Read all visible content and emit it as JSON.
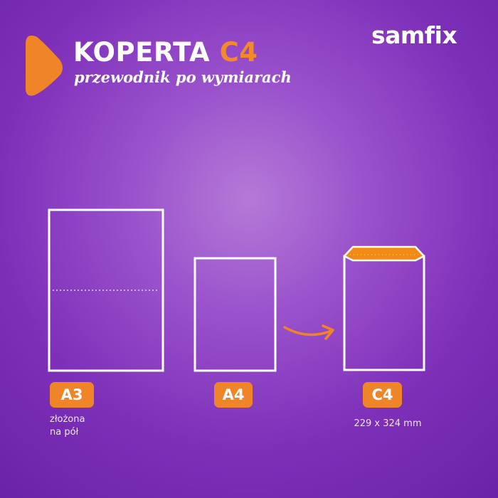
{
  "header": {
    "title_main": "KOPERTA",
    "title_accent": "C4",
    "subtitle": "przewodnik po wymiarach",
    "play_icon": "play-triangle-icon"
  },
  "brand": {
    "logo_text": "samfix"
  },
  "colors": {
    "accent": "#ef8528",
    "background": "#8a3fc0",
    "outline": "#ffffff"
  },
  "items": [
    {
      "label": "A3",
      "note_line1": "złożona",
      "note_line2": "na pół"
    },
    {
      "label": "A4"
    },
    {
      "label": "C4",
      "note": "229 x 324 mm"
    }
  ]
}
